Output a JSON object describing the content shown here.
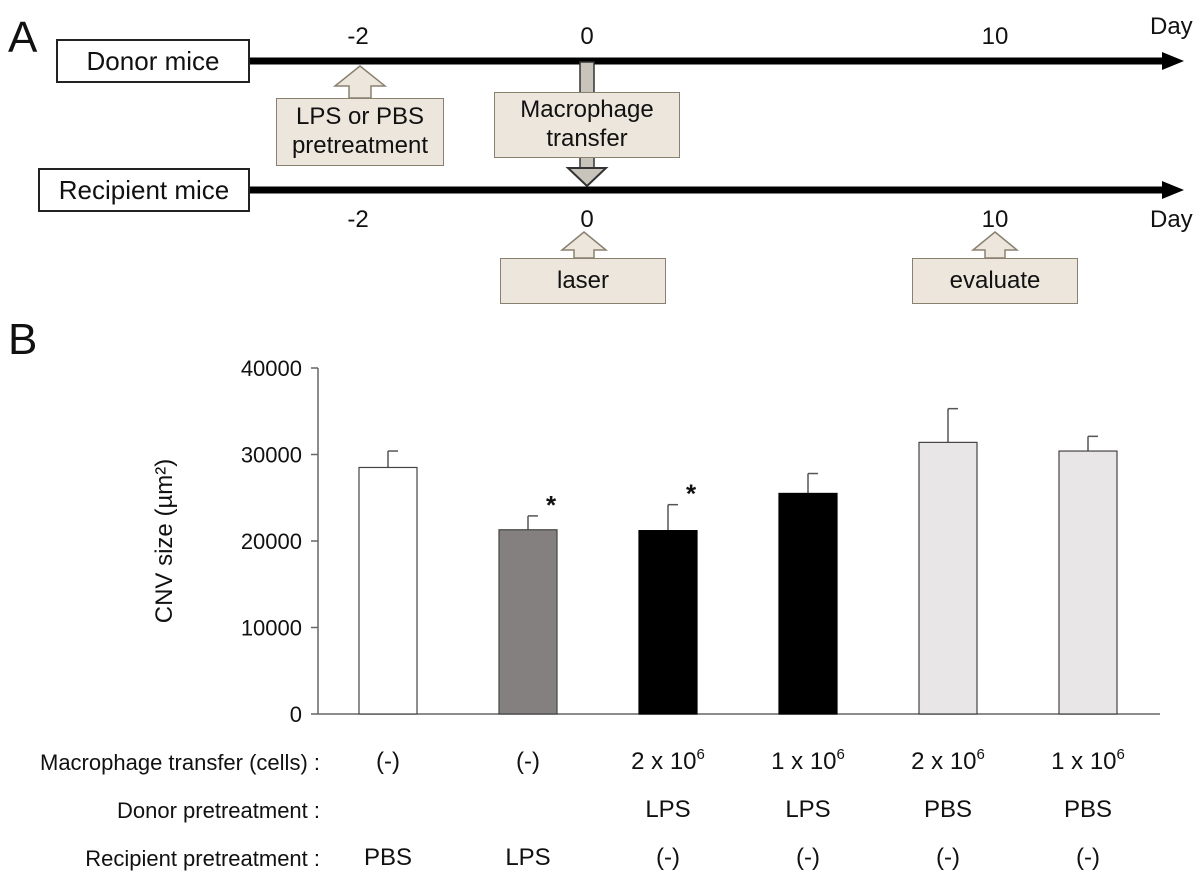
{
  "panel_a": {
    "label": "A",
    "donor": {
      "name": "Donor mice",
      "ticks": [
        "-2",
        "0",
        "10"
      ],
      "unit": "Day"
    },
    "recipient": {
      "name": "Recipient mice",
      "ticks": [
        "-2",
        "0",
        "10"
      ],
      "unit": "Day"
    },
    "callouts": {
      "pretreatment_line1": "LPS or PBS",
      "pretreatment_line2": "pretreatment",
      "transfer_line1": "Macrophage",
      "transfer_line2": "transfer",
      "laser": "laser",
      "evaluate": "evaluate"
    }
  },
  "panel_b": {
    "label": "B",
    "significance_marker": "*",
    "table": {
      "row_labels": [
        "Macrophage transfer (cells) :",
        "Donor pretreatment :",
        "Recipient pretreatment :"
      ],
      "transfer": [
        {
          "base": "(-)",
          "exp": ""
        },
        {
          "base": "(-)",
          "exp": ""
        },
        {
          "base": "2 x 10",
          "exp": "6"
        },
        {
          "base": "1 x 10",
          "exp": "6"
        },
        {
          "base": "2 x 10",
          "exp": "6"
        },
        {
          "base": "1 x 10",
          "exp": "6"
        }
      ],
      "donor": [
        "",
        "",
        "LPS",
        "LPS",
        "PBS",
        "PBS"
      ],
      "recipient": [
        "PBS",
        "LPS",
        "(-)",
        "(-)",
        "(-)",
        "(-)"
      ]
    }
  },
  "chart_data": {
    "type": "bar",
    "ylabel": "CNV size (µm²)",
    "ylim": [
      0,
      40000
    ],
    "yticks": [
      0,
      10000,
      20000,
      30000,
      40000
    ],
    "values": [
      28500,
      21300,
      21200,
      25500,
      31400,
      30400
    ],
    "errors": [
      1900,
      1600,
      3000,
      2300,
      3900,
      1700
    ],
    "significant": [
      false,
      true,
      true,
      false,
      false,
      false
    ],
    "colors": [
      "#ffffff",
      "#858080",
      "#000000",
      "#000000",
      "#e8e6e6",
      "#e8e6e6"
    ]
  }
}
